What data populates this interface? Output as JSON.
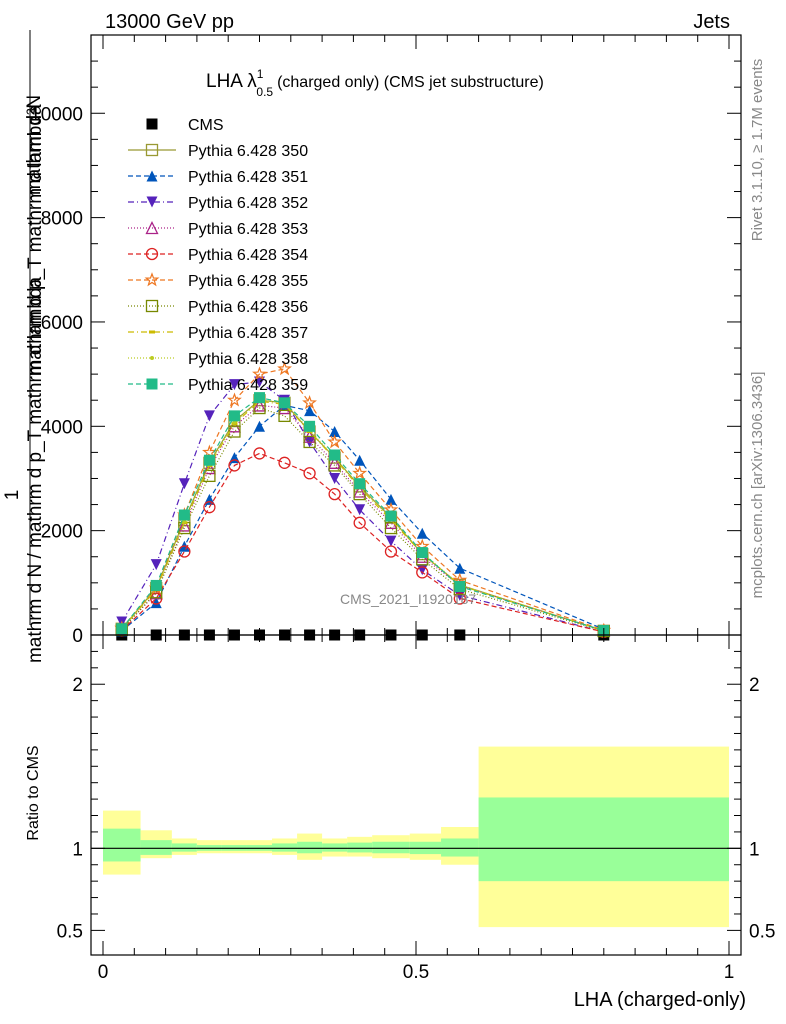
{
  "header": {
    "left": "13000 GeV pp",
    "right": "Jets"
  },
  "side_text": {
    "rivet": "Rivet 3.1.10, ≥ 1.7M events",
    "mcplots": "mcplots.cern.ch [arXiv:1306.3436]"
  },
  "watermark": "CMS_2021_I1920187",
  "chart_data": [
    {
      "type": "line",
      "title": "LHA λ",
      "title_sup": "1",
      "title_sub": "0.5",
      "title_rest": "(charged only) (CMS jet substructure)",
      "ylabel_numerator": "mathrm d²N",
      "ylabel_denominator": "mathrm d p_T mathrm d lambda",
      "ylabel_lower": "mathrm d N / mathrm d p_T mathrm d lambda",
      "ylabel_one": "1",
      "xlim": [
        0,
        1
      ],
      "ylim": [
        0,
        11500
      ],
      "yticks": [
        0,
        2000,
        4000,
        6000,
        8000,
        10000
      ],
      "ytick_labels": [
        "0",
        "2000",
        "4000",
        "6000",
        "8000",
        "10000"
      ],
      "x": [
        0.03,
        0.085,
        0.13,
        0.17,
        0.21,
        0.25,
        0.29,
        0.33,
        0.37,
        0.41,
        0.46,
        0.51,
        0.57,
        0.8
      ],
      "series": [
        {
          "name": "CMS",
          "color": "#000000",
          "marker": "square-filled",
          "dash": "none",
          "values": [
            0,
            0,
            0,
            0,
            0,
            0,
            0,
            0,
            0,
            0,
            0,
            0,
            0,
            0
          ]
        },
        {
          "name": "Pythia 6.428 350",
          "color": "#999933",
          "marker": "square-open",
          "dash": "solid",
          "values": [
            120,
            900,
            2200,
            3300,
            4100,
            4500,
            4450,
            3900,
            3400,
            2850,
            2250,
            1550,
            960,
            80
          ]
        },
        {
          "name": "Pythia 6.428 351",
          "color": "#0055bb",
          "marker": "triangle-up-filled",
          "dash": "5,3",
          "values": [
            80,
            620,
            1700,
            2600,
            3400,
            4000,
            4400,
            4300,
            3900,
            3350,
            2600,
            1950,
            1280,
            110
          ]
        },
        {
          "name": "Pythia 6.428 352",
          "color": "#5522bb",
          "marker": "triangle-down-filled",
          "dash": "6,3,1,3",
          "values": [
            250,
            1350,
            2900,
            4200,
            4800,
            4850,
            4500,
            3700,
            3000,
            2400,
            1800,
            1250,
            760,
            60
          ]
        },
        {
          "name": "Pythia 6.428 353",
          "color": "#aa2288",
          "marker": "triangle-up-open",
          "dash": "1,2",
          "values": [
            110,
            800,
            2100,
            3200,
            4000,
            4400,
            4350,
            3800,
            3300,
            2750,
            2150,
            1500,
            950,
            80
          ]
        },
        {
          "name": "Pythia 6.428 354",
          "color": "#dd2222",
          "marker": "circle-open",
          "dash": "5,3",
          "values": [
            90,
            700,
            1600,
            2450,
            3250,
            3480,
            3300,
            3100,
            2700,
            2150,
            1600,
            1200,
            700,
            60
          ]
        },
        {
          "name": "Pythia 6.428 355",
          "color": "#ee7722",
          "marker": "star-open",
          "dash": "5,3",
          "values": [
            130,
            900,
            2300,
            3500,
            4500,
            5000,
            5100,
            4450,
            3700,
            3100,
            2400,
            1700,
            1050,
            90
          ]
        },
        {
          "name": "Pythia 6.428 356",
          "color": "#778800",
          "marker": "square-open",
          "dash": "1,2",
          "values": [
            100,
            820,
            2050,
            3050,
            3900,
            4350,
            4200,
            3700,
            3250,
            2700,
            2050,
            1450,
            880,
            75
          ]
        },
        {
          "name": "Pythia 6.428 357",
          "color": "#ccbb00",
          "marker": "dash",
          "dash": "6,3,1,3",
          "values": [
            115,
            870,
            2150,
            3250,
            4050,
            4480,
            4420,
            3900,
            3380,
            2820,
            2200,
            1560,
            950,
            80
          ]
        },
        {
          "name": "Pythia 6.428 358",
          "color": "#bbcc22",
          "marker": "dot",
          "dash": "1,2",
          "values": [
            118,
            880,
            2180,
            3280,
            4080,
            4500,
            4460,
            3930,
            3400,
            2840,
            2230,
            1580,
            960,
            82
          ]
        },
        {
          "name": "Pythia 6.428 359",
          "color": "#22bb88",
          "marker": "square-filled",
          "dash": "5,3",
          "values": [
            120,
            950,
            2300,
            3350,
            4200,
            4550,
            4450,
            4000,
            3450,
            2900,
            2280,
            1580,
            930,
            85
          ]
        }
      ]
    },
    {
      "type": "area",
      "ylabel": "Ratio to CMS",
      "xlabel": "LHA (charged-only)",
      "xlim": [
        0,
        1
      ],
      "ylim": [
        0.35,
        2.3
      ],
      "xticks": [
        0,
        0.5,
        1
      ],
      "xtick_labels": [
        "0",
        "0.5",
        "1"
      ],
      "yticks": [
        0.5,
        1,
        2
      ],
      "ytick_labels": [
        "0.5",
        "1",
        "2"
      ],
      "reference_line": 1,
      "bins": [
        {
          "x0": 0.0,
          "x1": 0.06,
          "inner": [
            0.92,
            1.12
          ],
          "outer": [
            0.84,
            1.23
          ]
        },
        {
          "x0": 0.06,
          "x1": 0.11,
          "inner": [
            0.96,
            1.05
          ],
          "outer": [
            0.94,
            1.11
          ]
        },
        {
          "x0": 0.11,
          "x1": 0.15,
          "inner": [
            0.98,
            1.03
          ],
          "outer": [
            0.96,
            1.06
          ]
        },
        {
          "x0": 0.15,
          "x1": 0.19,
          "inner": [
            0.985,
            1.02
          ],
          "outer": [
            0.97,
            1.05
          ]
        },
        {
          "x0": 0.19,
          "x1": 0.23,
          "inner": [
            0.985,
            1.02
          ],
          "outer": [
            0.97,
            1.05
          ]
        },
        {
          "x0": 0.23,
          "x1": 0.27,
          "inner": [
            0.985,
            1.02
          ],
          "outer": [
            0.97,
            1.05
          ]
        },
        {
          "x0": 0.27,
          "x1": 0.31,
          "inner": [
            0.98,
            1.03
          ],
          "outer": [
            0.96,
            1.06
          ]
        },
        {
          "x0": 0.31,
          "x1": 0.35,
          "inner": [
            0.97,
            1.04
          ],
          "outer": [
            0.93,
            1.09
          ]
        },
        {
          "x0": 0.35,
          "x1": 0.39,
          "inner": [
            0.98,
            1.03
          ],
          "outer": [
            0.95,
            1.06
          ]
        },
        {
          "x0": 0.39,
          "x1": 0.43,
          "inner": [
            0.975,
            1.035
          ],
          "outer": [
            0.95,
            1.07
          ]
        },
        {
          "x0": 0.43,
          "x1": 0.49,
          "inner": [
            0.97,
            1.04
          ],
          "outer": [
            0.94,
            1.08
          ]
        },
        {
          "x0": 0.49,
          "x1": 0.54,
          "inner": [
            0.965,
            1.04
          ],
          "outer": [
            0.93,
            1.09
          ]
        },
        {
          "x0": 0.54,
          "x1": 0.6,
          "inner": [
            0.95,
            1.06
          ],
          "outer": [
            0.9,
            1.13
          ]
        },
        {
          "x0": 0.6,
          "x1": 1.0,
          "inner": [
            0.8,
            1.31
          ],
          "outer": [
            0.52,
            1.62
          ]
        }
      ],
      "inner_color": "#99ff99",
      "outer_color": "#ffff99"
    }
  ]
}
